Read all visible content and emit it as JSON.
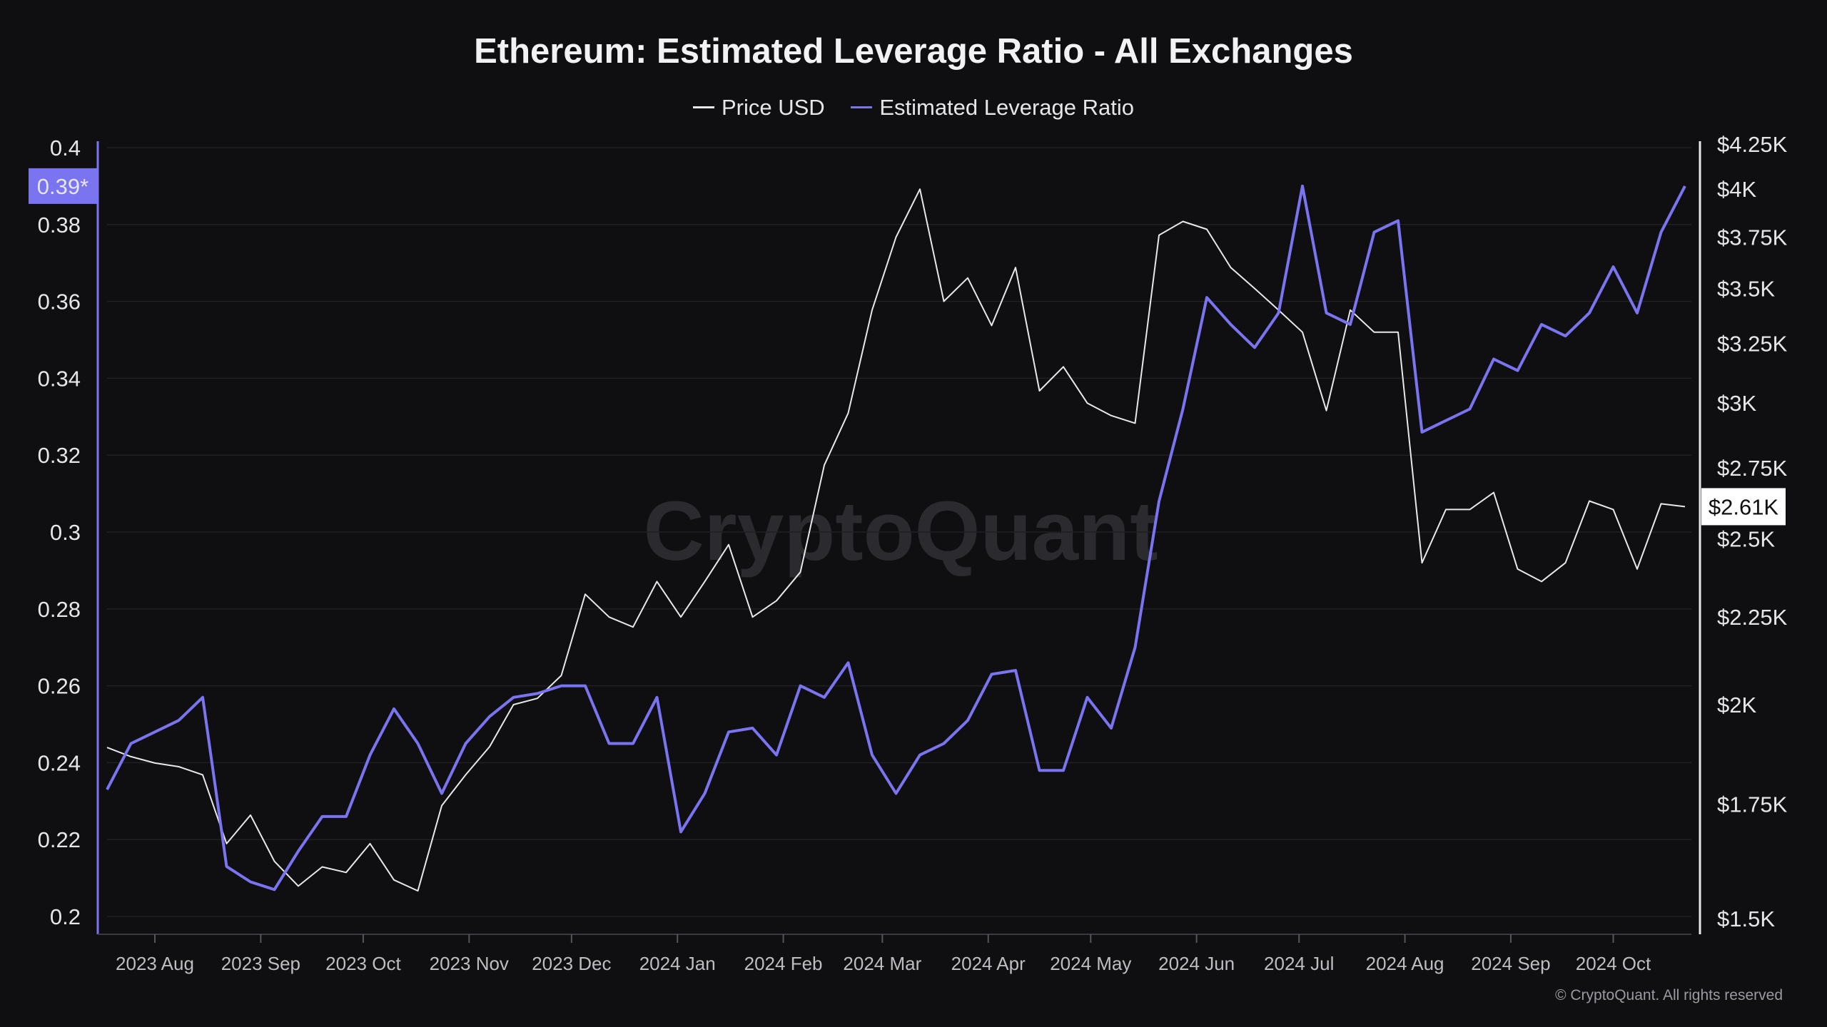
{
  "chart_data": {
    "type": "line",
    "title": "Ethereum: Estimated Leverage Ratio - All Exchanges",
    "watermark": "CryptoQuant",
    "copyright": "© CryptoQuant. All rights reserved",
    "legend_placement": "top-center",
    "grid": true,
    "colors": {
      "price": "#e8e8ea",
      "leverage": "#7b74f0",
      "background": "#0f0f11"
    },
    "x": [
      "2023-07-18",
      "2023-07-25",
      "2023-08-01",
      "2023-08-08",
      "2023-08-15",
      "2023-08-22",
      "2023-08-29",
      "2023-09-05",
      "2023-09-12",
      "2023-09-19",
      "2023-09-26",
      "2023-10-03",
      "2023-10-10",
      "2023-10-17",
      "2023-10-24",
      "2023-10-31",
      "2023-11-07",
      "2023-11-14",
      "2023-11-21",
      "2023-11-28",
      "2023-12-05",
      "2023-12-12",
      "2023-12-19",
      "2023-12-26",
      "2024-01-02",
      "2024-01-09",
      "2024-01-16",
      "2024-01-23",
      "2024-01-30",
      "2024-02-06",
      "2024-02-13",
      "2024-02-20",
      "2024-02-27",
      "2024-03-05",
      "2024-03-12",
      "2024-03-19",
      "2024-03-26",
      "2024-04-02",
      "2024-04-09",
      "2024-04-16",
      "2024-04-23",
      "2024-04-30",
      "2024-05-07",
      "2024-05-14",
      "2024-05-21",
      "2024-05-28",
      "2024-06-04",
      "2024-06-11",
      "2024-06-18",
      "2024-06-25",
      "2024-07-02",
      "2024-07-09",
      "2024-07-16",
      "2024-07-23",
      "2024-07-30",
      "2024-08-06",
      "2024-08-13",
      "2024-08-20",
      "2024-08-27",
      "2024-09-03",
      "2024-09-10",
      "2024-09-17",
      "2024-09-24",
      "2024-10-01",
      "2024-10-08",
      "2024-10-15",
      "2024-10-22"
    ],
    "series": [
      {
        "name": "Price USD",
        "axis": "right",
        "values": [
          1888,
          1865,
          1849,
          1840,
          1820,
          1659,
          1724,
          1620,
          1567,
          1608,
          1596,
          1659,
          1580,
          1557,
          1746,
          1820,
          1890,
          2000,
          2017,
          2080,
          2320,
          2250,
          2220,
          2360,
          2250,
          2360,
          2480,
          2250,
          2300,
          2390,
          2760,
          2960,
          3400,
          3750,
          4000,
          3440,
          3550,
          3330,
          3600,
          3050,
          3150,
          3000,
          2950,
          2920,
          3760,
          3830,
          3790,
          3600,
          3500,
          3400,
          3300,
          2970,
          3400,
          3300,
          3300,
          2420,
          2600,
          2600,
          2660,
          2400,
          2360,
          2420,
          2630,
          2600,
          2400,
          2620,
          2610
        ]
      },
      {
        "name": "Estimated Leverage Ratio",
        "axis": "left",
        "values": [
          0.233,
          0.245,
          0.248,
          0.251,
          0.257,
          0.213,
          0.209,
          0.207,
          0.217,
          0.226,
          0.226,
          0.242,
          0.254,
          0.245,
          0.232,
          0.245,
          0.252,
          0.257,
          0.258,
          0.26,
          0.26,
          0.245,
          0.245,
          0.257,
          0.222,
          0.232,
          0.248,
          0.249,
          0.242,
          0.26,
          0.257,
          0.266,
          0.242,
          0.232,
          0.242,
          0.245,
          0.251,
          0.263,
          0.264,
          0.238,
          0.238,
          0.257,
          0.249,
          0.27,
          0.308,
          0.332,
          0.361,
          0.354,
          0.348,
          0.357,
          0.39,
          0.357,
          0.354,
          0.378,
          0.381,
          0.326,
          0.329,
          0.332,
          0.345,
          0.342,
          0.354,
          0.351,
          0.357,
          0.369,
          0.357,
          0.378,
          0.39
        ]
      }
    ],
    "y_left": {
      "range": [
        0.2,
        0.4
      ],
      "ticks": [
        "0.2",
        "0.22",
        "0.24",
        "0.26",
        "0.28",
        "0.3",
        "0.32",
        "0.34",
        "0.36",
        "0.38",
        "0.4"
      ],
      "current_label": "0.39*"
    },
    "y_right": {
      "scale": "log",
      "range": [
        1500,
        4250
      ],
      "ticks": [
        {
          "v": 1500,
          "l": "$1.5K"
        },
        {
          "v": 1750,
          "l": "$1.75K"
        },
        {
          "v": 2000,
          "l": "$2K"
        },
        {
          "v": 2250,
          "l": "$2.25K"
        },
        {
          "v": 2500,
          "l": "$2.5K"
        },
        {
          "v": 2750,
          "l": "$2.75K"
        },
        {
          "v": 3000,
          "l": "$3K"
        },
        {
          "v": 3250,
          "l": "$3.25K"
        },
        {
          "v": 3500,
          "l": "$3.5K"
        },
        {
          "v": 3750,
          "l": "$3.75K"
        },
        {
          "v": 4000,
          "l": "$4K"
        },
        {
          "v": 4250,
          "l": "$4.25K"
        }
      ],
      "current_label": "$2.61K"
    },
    "x_ticks": [
      {
        "d": "2023-08-01",
        "l": "2023 Aug"
      },
      {
        "d": "2023-09-01",
        "l": "2023 Sep"
      },
      {
        "d": "2023-10-01",
        "l": "2023 Oct"
      },
      {
        "d": "2023-11-01",
        "l": "2023 Nov"
      },
      {
        "d": "2023-12-01",
        "l": "2023 Dec"
      },
      {
        "d": "2024-01-01",
        "l": "2024 Jan"
      },
      {
        "d": "2024-02-01",
        "l": "2024 Feb"
      },
      {
        "d": "2024-03-01",
        "l": "2024 Mar"
      },
      {
        "d": "2024-04-01",
        "l": "2024 Apr"
      },
      {
        "d": "2024-05-01",
        "l": "2024 May"
      },
      {
        "d": "2024-06-01",
        "l": "2024 Jun"
      },
      {
        "d": "2024-07-01",
        "l": "2024 Jul"
      },
      {
        "d": "2024-08-01",
        "l": "2024 Aug"
      },
      {
        "d": "2024-09-01",
        "l": "2024 Sep"
      },
      {
        "d": "2024-10-01",
        "l": "2024 Oct"
      }
    ]
  }
}
